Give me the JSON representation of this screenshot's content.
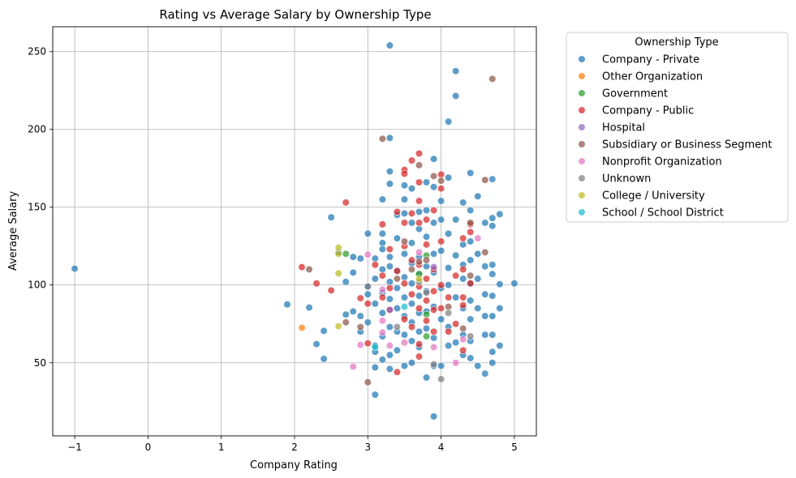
{
  "chart_data": {
    "type": "scatter",
    "title": "Rating vs Average Salary by Ownership Type",
    "xlabel": "Company Rating",
    "ylabel": "Average Salary",
    "xlim": [
      -1.3,
      5.3
    ],
    "ylim": [
      3,
      266
    ],
    "xticks": [
      -1,
      0,
      1,
      2,
      3,
      4,
      5
    ],
    "yticks": [
      50,
      100,
      150,
      200,
      250
    ],
    "grid": true,
    "legend": {
      "title": "Ownership Type",
      "placement": "outside-right"
    },
    "series": [
      {
        "name": "Company - Private",
        "color": "#1f77b4",
        "points": [
          [
            -1,
            110.5
          ],
          [
            1.9,
            87.5
          ],
          [
            2.2,
            85.5
          ],
          [
            2.3,
            62
          ],
          [
            2.4,
            52.5
          ],
          [
            2.4,
            70.5
          ],
          [
            2.5,
            143.5
          ],
          [
            2.6,
            121
          ],
          [
            2.7,
            81
          ],
          [
            2.7,
            102
          ],
          [
            2.8,
            108
          ],
          [
            2.8,
            83
          ],
          [
            2.8,
            118
          ],
          [
            2.9,
            70
          ],
          [
            2.9,
            80
          ],
          [
            2.9,
            117
          ],
          [
            3.0,
            99
          ],
          [
            3.0,
            133
          ],
          [
            3.0,
            94
          ],
          [
            3.0,
            76
          ],
          [
            3.1,
            104
          ],
          [
            3.1,
            61
          ],
          [
            3.1,
            57
          ],
          [
            3.1,
            47
          ],
          [
            3.1,
            29.5
          ],
          [
            3.1,
            117
          ],
          [
            3.1,
            88
          ],
          [
            3.2,
            155
          ],
          [
            3.2,
            133
          ],
          [
            3.2,
            127
          ],
          [
            3.2,
            123
          ],
          [
            3.2,
            110
          ],
          [
            3.2,
            95
          ],
          [
            3.2,
            82
          ],
          [
            3.2,
            67
          ],
          [
            3.2,
            52
          ],
          [
            3.3,
            254
          ],
          [
            3.3,
            194.5
          ],
          [
            3.3,
            173
          ],
          [
            3.3,
            165
          ],
          [
            3.3,
            118
          ],
          [
            3.3,
            112
          ],
          [
            3.3,
            102
          ],
          [
            3.3,
            91
          ],
          [
            3.3,
            73
          ],
          [
            3.3,
            55
          ],
          [
            3.3,
            46
          ],
          [
            3.4,
            145
          ],
          [
            3.4,
            130
          ],
          [
            3.4,
            109
          ],
          [
            3.4,
            98
          ],
          [
            3.4,
            85
          ],
          [
            3.4,
            70
          ],
          [
            3.4,
            58
          ],
          [
            3.5,
            164
          ],
          [
            3.5,
            155
          ],
          [
            3.5,
            146
          ],
          [
            3.5,
            120
          ],
          [
            3.5,
            105
          ],
          [
            3.5,
            92
          ],
          [
            3.5,
            80
          ],
          [
            3.5,
            68
          ],
          [
            3.5,
            48
          ],
          [
            3.6,
            162
          ],
          [
            3.6,
            140
          ],
          [
            3.6,
            127
          ],
          [
            3.6,
            114
          ],
          [
            3.6,
            101
          ],
          [
            3.6,
            88
          ],
          [
            3.6,
            76
          ],
          [
            3.6,
            64
          ],
          [
            3.6,
            50
          ],
          [
            3.7,
            147
          ],
          [
            3.7,
            136
          ],
          [
            3.7,
            118
          ],
          [
            3.7,
            107
          ],
          [
            3.7,
            93
          ],
          [
            3.7,
            82
          ],
          [
            3.7,
            70
          ],
          [
            3.7,
            60
          ],
          [
            3.8,
            166
          ],
          [
            3.8,
            148
          ],
          [
            3.8,
            131
          ],
          [
            3.8,
            112
          ],
          [
            3.8,
            96
          ],
          [
            3.8,
            83
          ],
          [
            3.8,
            72
          ],
          [
            3.8,
            40.5
          ],
          [
            3.9,
            181
          ],
          [
            3.9,
            163
          ],
          [
            3.9,
            140
          ],
          [
            3.9,
            120
          ],
          [
            3.9,
            108
          ],
          [
            3.9,
            86
          ],
          [
            3.9,
            66
          ],
          [
            3.9,
            48
          ],
          [
            3.9,
            15.5
          ],
          [
            4.0,
            154
          ],
          [
            4.0,
            142
          ],
          [
            4.0,
            122
          ],
          [
            4.0,
            98
          ],
          [
            4.0,
            78
          ],
          [
            4.0,
            48
          ],
          [
            4.1,
            205
          ],
          [
            4.1,
            169
          ],
          [
            4.1,
            133
          ],
          [
            4.1,
            111
          ],
          [
            4.1,
            100
          ],
          [
            4.1,
            73
          ],
          [
            4.1,
            61
          ],
          [
            4.2,
            237.5
          ],
          [
            4.2,
            221.5
          ],
          [
            4.2,
            142
          ],
          [
            4.2,
            119
          ],
          [
            4.2,
            92
          ],
          [
            4.2,
            63
          ],
          [
            4.3,
            153
          ],
          [
            4.3,
            126
          ],
          [
            4.3,
            113
          ],
          [
            4.3,
            104
          ],
          [
            4.3,
            85
          ],
          [
            4.3,
            68
          ],
          [
            4.3,
            55
          ],
          [
            4.4,
            172
          ],
          [
            4.4,
            148
          ],
          [
            4.4,
            128
          ],
          [
            4.4,
            116
          ],
          [
            4.4,
            101
          ],
          [
            4.4,
            90
          ],
          [
            4.4,
            78
          ],
          [
            4.4,
            64
          ],
          [
            4.4,
            53
          ],
          [
            4.5,
            157
          ],
          [
            4.5,
            120
          ],
          [
            4.5,
            104
          ],
          [
            4.5,
            85
          ],
          [
            4.5,
            48
          ],
          [
            4.6,
            140
          ],
          [
            4.6,
            112
          ],
          [
            4.6,
            94
          ],
          [
            4.6,
            80
          ],
          [
            4.6,
            68
          ],
          [
            4.6,
            43
          ],
          [
            4.7,
            168
          ],
          [
            4.7,
            143
          ],
          [
            4.7,
            138
          ],
          [
            4.7,
            113
          ],
          [
            4.7,
            107
          ],
          [
            4.7,
            93
          ],
          [
            4.7,
            80
          ],
          [
            4.7,
            68
          ],
          [
            4.7,
            57
          ],
          [
            4.7,
            50
          ],
          [
            4.8,
            145.5
          ],
          [
            4.8,
            100.5
          ],
          [
            4.8,
            85
          ],
          [
            4.8,
            61
          ],
          [
            5.0,
            101
          ]
        ]
      },
      {
        "name": "Other Organization",
        "color": "#ff7f0e",
        "points": [
          [
            2.1,
            72.5
          ]
        ]
      },
      {
        "name": "Government",
        "color": "#2ca02c",
        "points": [
          [
            2.7,
            120
          ],
          [
            3.8,
            119
          ],
          [
            3.8,
            81
          ],
          [
            3.8,
            67
          ],
          [
            3.7,
            107
          ]
        ]
      },
      {
        "name": "Company - Public",
        "color": "#d62728",
        "points": [
          [
            2.1,
            111.5
          ],
          [
            2.3,
            101
          ],
          [
            2.5,
            96.5
          ],
          [
            2.7,
            153
          ],
          [
            2.9,
            91.5
          ],
          [
            3.0,
            62.5
          ],
          [
            3.0,
            88
          ],
          [
            3.1,
            113
          ],
          [
            3.2,
            139
          ],
          [
            3.2,
            106
          ],
          [
            3.2,
            92
          ],
          [
            3.3,
            123
          ],
          [
            3.3,
            98
          ],
          [
            3.3,
            84
          ],
          [
            3.4,
            147
          ],
          [
            3.4,
            109
          ],
          [
            3.4,
            44
          ],
          [
            3.5,
            174
          ],
          [
            3.5,
            171.5
          ],
          [
            3.5,
            140
          ],
          [
            3.5,
            125
          ],
          [
            3.5,
            101
          ],
          [
            3.5,
            78
          ],
          [
            3.6,
            180
          ],
          [
            3.6,
            146
          ],
          [
            3.6,
            116
          ],
          [
            3.6,
            94
          ],
          [
            3.6,
            73
          ],
          [
            3.7,
            184.5
          ],
          [
            3.7,
            166
          ],
          [
            3.7,
            154
          ],
          [
            3.7,
            140
          ],
          [
            3.7,
            113
          ],
          [
            3.7,
            99
          ],
          [
            3.7,
            85
          ],
          [
            3.7,
            62
          ],
          [
            3.7,
            54
          ],
          [
            3.8,
            142
          ],
          [
            3.8,
            126
          ],
          [
            3.8,
            104
          ],
          [
            3.8,
            90
          ],
          [
            3.8,
            77
          ],
          [
            3.9,
            148
          ],
          [
            3.9,
            110
          ],
          [
            3.9,
            96
          ],
          [
            3.9,
            84
          ],
          [
            3.9,
            70
          ],
          [
            4.0,
            171
          ],
          [
            4.0,
            162
          ],
          [
            4.0,
            128
          ],
          [
            4.0,
            100
          ],
          [
            4.0,
            85
          ],
          [
            4.1,
            92
          ],
          [
            4.1,
            70
          ],
          [
            4.2,
            106
          ],
          [
            4.2,
            75
          ],
          [
            4.3,
            130
          ],
          [
            4.3,
            110
          ],
          [
            4.3,
            92
          ],
          [
            4.3,
            87
          ],
          [
            4.3,
            58
          ],
          [
            4.4,
            139
          ],
          [
            4.4,
            134
          ],
          [
            4.4,
            101
          ]
        ]
      },
      {
        "name": "Hospital",
        "color": "#9467bd",
        "points": [
          [
            3.3,
            84
          ],
          [
            3.9,
            111.5
          ]
        ]
      },
      {
        "name": "Subsidiary or Business Segment",
        "color": "#8c564b",
        "points": [
          [
            2.2,
            110
          ],
          [
            2.7,
            76
          ],
          [
            2.9,
            73
          ],
          [
            3.0,
            37.5
          ],
          [
            3.2,
            194
          ],
          [
            3.4,
            104
          ],
          [
            3.5,
            128
          ],
          [
            3.6,
            110
          ],
          [
            3.7,
            177
          ],
          [
            3.7,
            115
          ],
          [
            3.8,
            116
          ],
          [
            3.9,
            170
          ],
          [
            4.0,
            167
          ],
          [
            4.1,
            86
          ],
          [
            4.3,
            72
          ],
          [
            4.4,
            106
          ],
          [
            4.4,
            140
          ],
          [
            4.6,
            121
          ],
          [
            4.6,
            167.5
          ],
          [
            4.7,
            232.5
          ]
        ]
      },
      {
        "name": "Nonprofit Organization",
        "color": "#e377c2",
        "points": [
          [
            2.8,
            47.5
          ],
          [
            2.9,
            61.5
          ],
          [
            3.0,
            119.5
          ],
          [
            3.2,
            97
          ],
          [
            3.2,
            77
          ],
          [
            3.2,
            69.5
          ],
          [
            3.3,
            61
          ],
          [
            3.5,
            63
          ],
          [
            3.7,
            121
          ],
          [
            3.9,
            60
          ],
          [
            4.2,
            50
          ],
          [
            4.3,
            65
          ],
          [
            4.5,
            130
          ]
        ]
      },
      {
        "name": "Unknown",
        "color": "#7f7f7f",
        "points": [
          [
            3.0,
            99
          ],
          [
            3.4,
            73
          ],
          [
            3.7,
            102
          ],
          [
            3.8,
            95
          ],
          [
            3.9,
            49
          ],
          [
            4.0,
            39.5
          ],
          [
            4.1,
            82
          ],
          [
            4.4,
            67
          ]
        ]
      },
      {
        "name": "College / University",
        "color": "#bcbd22",
        "points": [
          [
            2.6,
            124
          ],
          [
            2.6,
            120
          ],
          [
            2.6,
            107.5
          ],
          [
            2.6,
            73.5
          ],
          [
            3.7,
            104
          ]
        ]
      },
      {
        "name": "School / School District",
        "color": "#17becf",
        "points": [
          [
            3.1,
            60
          ],
          [
            3.5,
            86
          ]
        ]
      }
    ]
  }
}
